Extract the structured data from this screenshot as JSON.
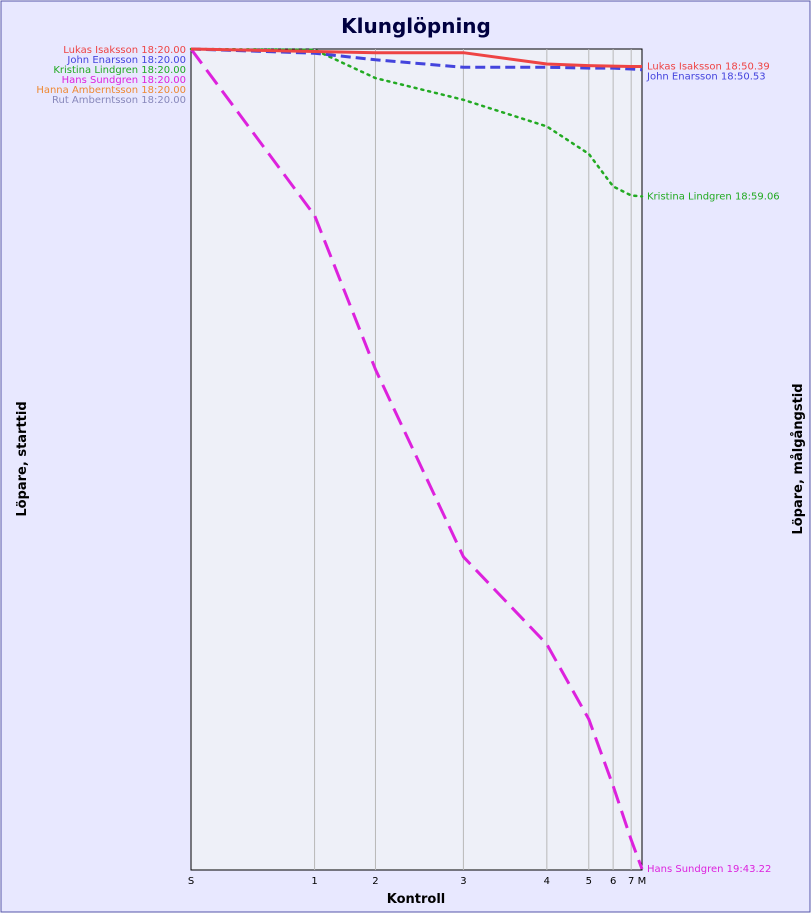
{
  "chart_data": {
    "type": "line",
    "title": "Klunglöpning",
    "xlabel": "Kontroll",
    "ylabel_left": "Löpare, starttid",
    "ylabel_right": "Löpare, målgångstid",
    "background_color": "#e8e8ff",
    "plot_background_color": "#eef0f8",
    "grid": "vertical",
    "x_ticks": [
      {
        "label": "S",
        "pos": 0
      },
      {
        "label": "1",
        "pos": 0.274
      },
      {
        "label": "2",
        "pos": 0.409
      },
      {
        "label": "3",
        "pos": 0.604
      },
      {
        "label": "4",
        "pos": 0.789
      },
      {
        "label": "5",
        "pos": 0.882
      },
      {
        "label": "6",
        "pos": 0.936
      },
      {
        "label": "7",
        "pos": 0.976
      },
      {
        "label": "M",
        "pos": 1.0
      }
    ],
    "series": [
      {
        "name": "Lukas Isaksson",
        "start_label": "Lukas Isaksson 18:20.00",
        "end_label": "Lukas Isaksson 18:50.39",
        "color": "#ee4444",
        "dash": "solid",
        "values": [
          0,
          0.3,
          0.45,
          0.45,
          1.8,
          2.0,
          2.05,
          2.1,
          2.1
        ]
      },
      {
        "name": "John Enarsson",
        "start_label": "John Enarsson 18:20.00",
        "end_label": "John Enarsson 18:50.53",
        "color": "#4444dd",
        "dash": "dashed",
        "values": [
          0,
          0.5,
          1.3,
          2.2,
          2.2,
          2.3,
          2.3,
          2.4,
          2.5
        ]
      },
      {
        "name": "Kristina Lindgren",
        "start_label": "Kristina Lindgren 18:20.00",
        "end_label": "Kristina Lindgren 18:59.06",
        "color": "#22aa22",
        "dash": "dotted",
        "values": [
          0,
          0.1,
          3.5,
          6.1,
          9.3,
          12.6,
          16.5,
          17.6,
          17.7
        ]
      },
      {
        "name": "Hans Sundgren",
        "start_label": "Hans Sundgren 18:20.00",
        "end_label": "Hans Sundgren 19:43.22",
        "color": "#dd22dd",
        "dash": "long-dashed",
        "values": [
          0,
          20,
          38.5,
          61,
          71.5,
          80.5,
          88.5,
          95,
          98.5
        ]
      },
      {
        "name": "Hanna Amberntsson",
        "start_label": "Hanna Amberntsson 18:20.00",
        "end_label": "",
        "color": "#ee8833",
        "dash": "solid",
        "values": []
      },
      {
        "name": "Rut Amberntsson",
        "start_label": "Rut Amberntsson 18:20.00",
        "end_label": "",
        "color": "#8888bb",
        "dash": "solid",
        "values": []
      }
    ],
    "y_range": [
      0,
      98.5
    ],
    "y_inverted": true
  }
}
